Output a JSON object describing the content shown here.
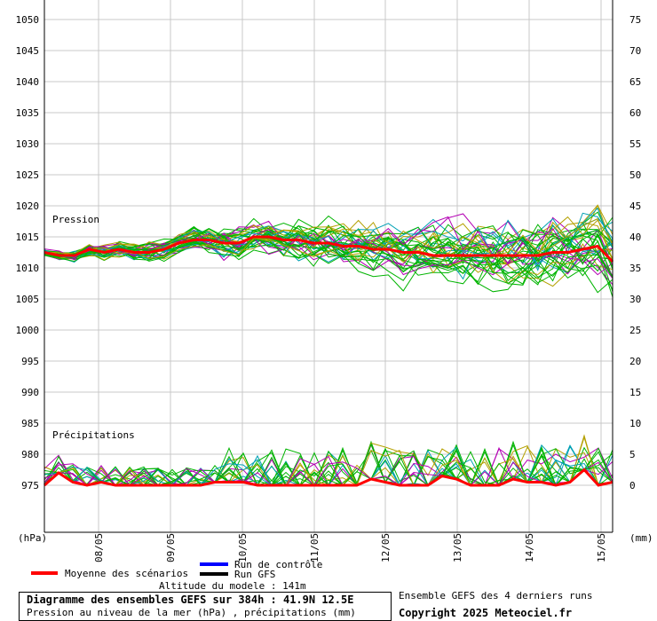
{
  "chart_data": {
    "type": "line",
    "title": "Diagramme des ensembles GEFS sur 384h : 41.9N 12.5E",
    "subtitle": "Pression au niveau de la mer (hPa) , précipitations (mm)",
    "left_axis_unit": "(hPa)",
    "right_axis_unit": "(mm)",
    "pressure_label": "Pression",
    "precip_label": "Précipitations",
    "pressure_ticks": [
      "1050",
      "1045",
      "1040",
      "1035",
      "1030",
      "1025",
      "1020",
      "1015",
      "1010",
      "1005",
      "1000",
      "995",
      "990",
      "985",
      "980",
      "975"
    ],
    "precip_ticks": [
      "75",
      "70",
      "65",
      "60",
      "55",
      "50",
      "45",
      "40",
      "35",
      "30",
      "25",
      "20",
      "15",
      "10",
      "5",
      "0"
    ],
    "date_labels": [
      "08/05",
      "09/05",
      "10/05",
      "11/05",
      "12/05",
      "13/05",
      "14/05",
      "15/05"
    ],
    "grid": true,
    "series": [
      {
        "name": "Moyenne des scénarios",
        "quantity": "pressure",
        "color": "#ff0000",
        "values": [
          1012.5,
          1012,
          1012,
          1013,
          1012.5,
          1013,
          1012.5,
          1012.5,
          1013,
          1014,
          1014.5,
          1014.5,
          1014,
          1014,
          1015,
          1015,
          1014.5,
          1014.5,
          1014,
          1014,
          1013.5,
          1013.5,
          1013,
          1013,
          1012.5,
          1012.5,
          1012,
          1012,
          1012,
          1012,
          1012,
          1012,
          1012,
          1012,
          1012.5,
          1012.5,
          1013,
          1013.5,
          1011
        ]
      },
      {
        "name": "Moyenne des scénarios",
        "quantity": "precipitation",
        "color": "#ff0000",
        "values": [
          0,
          2,
          0.5,
          0,
          0.5,
          0,
          0,
          0,
          0,
          0,
          0,
          0,
          0.5,
          0.5,
          0.5,
          0,
          0,
          0,
          0,
          0,
          0,
          0,
          0,
          1,
          0.5,
          0,
          0,
          0,
          1.5,
          1,
          0,
          0,
          0,
          1,
          0.5,
          0.5,
          0,
          0.5,
          2.5,
          0,
          0.5
        ]
      }
    ]
  },
  "legend": {
    "mean": "Moyenne des scénarios",
    "control": "Run de contrôle",
    "gfs": "Run GFS",
    "altitude": "Altitude du modele : 141m"
  },
  "footer": {
    "title": "Diagramme des ensembles GEFS sur 384h : 41.9N 12.5E",
    "subtitle": "Pression au niveau de la mer (hPa) , précipitations (mm)",
    "runs_note": "Ensemble GEFS des 4 derniers runs",
    "copyright": "Copyright 2025 Meteociel.fr"
  },
  "colors": {
    "mean": "#ff0000",
    "control": "#0000ff",
    "gfs": "#000000",
    "ensemble": [
      "#00b400",
      "#00b400",
      "#00b400",
      "#b4a000",
      "#b400b4",
      "#00a0b4"
    ]
  }
}
